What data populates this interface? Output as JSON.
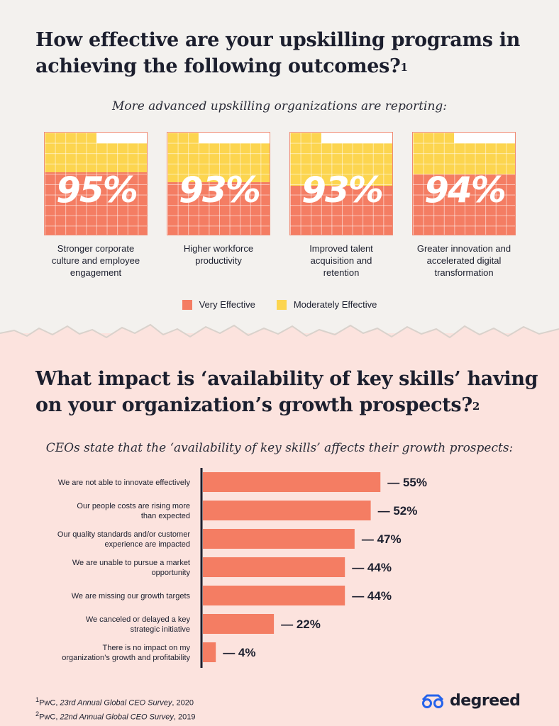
{
  "section1": {
    "title": "How effective are your upskilling programs in achieving the following outcomes?",
    "title_footnote": "1",
    "subtitle": "More advanced upskilling organizations are reporting:"
  },
  "chart_data": [
    {
      "type": "bar",
      "categories": [
        "Stronger corporate culture and employee engagement",
        "Higher workforce productivity",
        "Improved talent acquisition and retention",
        "Greater innovation and accelerated digital transformation"
      ],
      "totals_label": [
        "95%",
        "93%",
        "93%",
        "94%"
      ],
      "totals": [
        95,
        93,
        93,
        94
      ],
      "series": [
        {
          "name": "Very Effective",
          "values": [
            60,
            51,
            47,
            58
          ]
        },
        {
          "name": "Moderately Effective",
          "values": [
            35,
            42,
            46,
            36
          ]
        }
      ],
      "ylim": [
        0,
        100
      ],
      "legend": "bottom-center"
    },
    {
      "type": "bar",
      "orientation": "horizontal",
      "categories": [
        "We are not able to innovate effectively",
        "Our people costs are rising more than expected",
        "Our quality standards and/or customer experience are impacted",
        "We are unable to pursue a market opportunity",
        "We are missing our growth targets",
        "We canceled or delayed a key strategic initiative",
        "There is no impact on my organization's growth and profitability"
      ],
      "category_lines": [
        [
          "We are not able to innovate effectively"
        ],
        [
          "Our people costs are rising more",
          "than expected"
        ],
        [
          "Our quality standards and/or customer",
          "experience are impacted"
        ],
        [
          "We are unable to pursue a market",
          "opportunity"
        ],
        [
          "We are missing our growth targets"
        ],
        [
          "We canceled or delayed a key",
          "strategic initiative"
        ],
        [
          "There is no impact on my",
          "organization’s growth and profitability"
        ]
      ],
      "values": [
        55,
        52,
        47,
        44,
        44,
        22,
        4
      ],
      "value_labels": [
        "— 55%",
        "— 52%",
        "— 47%",
        "— 44%",
        "— 44%",
        "— 22%",
        "— 4%"
      ],
      "xlim": [
        0,
        100
      ]
    }
  ],
  "legend": {
    "very_effective": "Very Effective",
    "moderately_effective": "Moderately Effective"
  },
  "section2": {
    "title": "What impact is ‘availability of key skills’ having on your organization’s growth prospects?",
    "title_footnote": "2",
    "subtitle": "CEOs state that the ‘availability of key skills’ affects their growth prospects:"
  },
  "footnotes": [
    {
      "mark": "1",
      "source": "PwC, ",
      "title": "23rd Annual Global CEO Survey",
      "year": ", 2020"
    },
    {
      "mark": "2",
      "source": "PwC, ",
      "title": "22nd Annual Global CEO Survey",
      "year": ", 2019"
    }
  ],
  "brand": {
    "name": "degreed",
    "icon": "glasses-icon"
  },
  "colors": {
    "very_effective": "#f47d63",
    "moderately_effective": "#fcd54f",
    "accent_blue": "#2563eb",
    "text": "#1c1f2e"
  }
}
